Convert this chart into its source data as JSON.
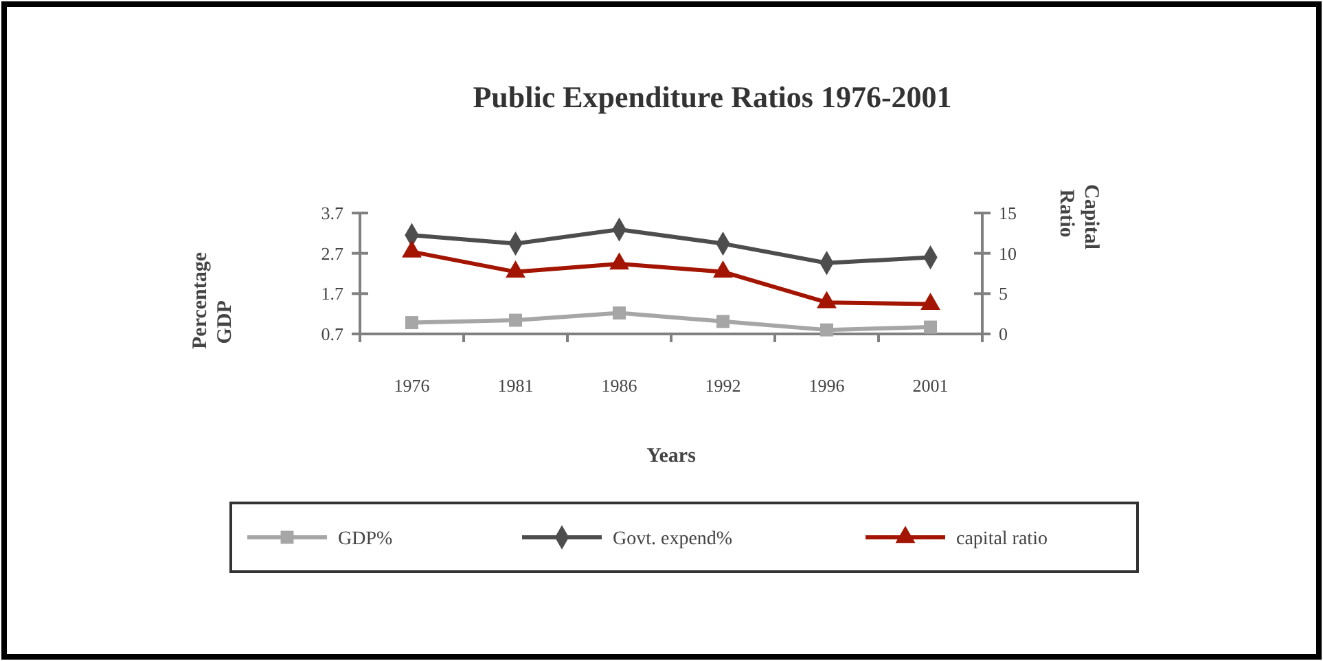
{
  "chart_data": {
    "type": "line",
    "title": "Public Expenditure Ratios 1976-2001",
    "xlabel": "Years",
    "ylabel": "Percentage GDP",
    "y2label": "Capital Ratio",
    "categories": [
      "1976",
      "1981",
      "1986",
      "1992",
      "1996",
      "2001"
    ],
    "ylim": [
      0.7,
      3.7
    ],
    "yticks": [
      0.7,
      1.7,
      2.7,
      3.7
    ],
    "y2lim": [
      0,
      15
    ],
    "y2ticks": [
      0,
      5,
      10,
      15
    ],
    "legend": "bottom",
    "grid": false,
    "series": [
      {
        "name": "GDP%",
        "color": "#a6a6a6",
        "marker": "square",
        "values": [
          0.98,
          1.04,
          1.22,
          1.01,
          0.8,
          0.87
        ]
      },
      {
        "name": "Govt. expend%",
        "color": "#4d4d4d",
        "marker": "diamond",
        "values": [
          3.15,
          2.94,
          3.29,
          2.94,
          2.46,
          2.6
        ]
      },
      {
        "name": "capital ratio",
        "color": "#a31500",
        "marker": "triangle",
        "axis": "y2",
        "values": [
          10.2,
          7.7,
          8.7,
          7.7,
          3.9,
          3.7
        ]
      }
    ]
  }
}
